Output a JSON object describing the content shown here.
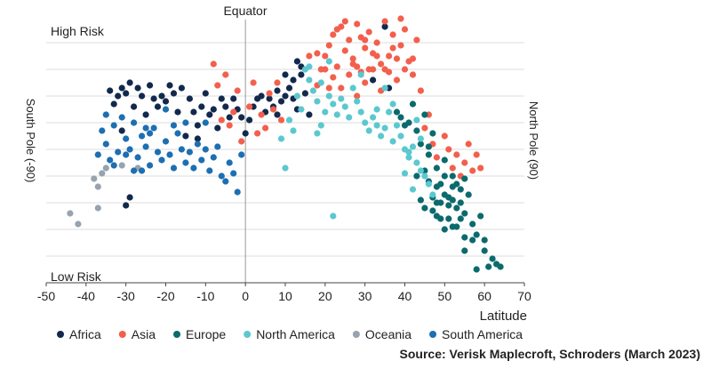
{
  "chart_data": {
    "type": "scatter",
    "xlabel": "Latitude",
    "ylabel": "",
    "xlim": [
      -50,
      70
    ],
    "x_ticks": [
      -50,
      -40,
      -30,
      -20,
      -10,
      0,
      10,
      20,
      30,
      40,
      50,
      60,
      70
    ],
    "ylim": [
      0,
      10
    ],
    "grid": "horizontal",
    "annotations": {
      "top_center": "Equator",
      "top_left": "High Risk",
      "bottom_left": "Low Risk",
      "left_side": "South Pole (-90)",
      "right_side": "North Pole (90)"
    },
    "legend_position": "bottom",
    "source": "Source: Verisk Maplecroft, Schroders (March 2023)",
    "series": [
      {
        "name": "Africa",
        "color": "#12294d",
        "points": [
          [
            -34,
            7.2
          ],
          [
            -33,
            6.7
          ],
          [
            -32,
            7.0
          ],
          [
            -31,
            7.3
          ],
          [
            -30,
            7.1
          ],
          [
            -29,
            7.5
          ],
          [
            -28,
            6.6
          ],
          [
            -27,
            7.3
          ],
          [
            -26,
            7.0
          ],
          [
            -25,
            6.3
          ],
          [
            -24,
            7.4
          ],
          [
            -23,
            6.9
          ],
          [
            -22,
            6.6
          ],
          [
            -21,
            7.0
          ],
          [
            -20,
            6.8
          ],
          [
            -19,
            7.4
          ],
          [
            -18,
            7.1
          ],
          [
            -17,
            6.4
          ],
          [
            -16,
            7.3
          ],
          [
            -15,
            5.5
          ],
          [
            -14,
            6.9
          ],
          [
            -13,
            6.4
          ],
          [
            -12,
            5.4
          ],
          [
            -11,
            6.6
          ],
          [
            -10,
            7.1
          ],
          [
            -9,
            6.3
          ],
          [
            -8,
            6.5
          ],
          [
            -7,
            5.8
          ],
          [
            -6,
            6.9
          ],
          [
            -5,
            6.6
          ],
          [
            -4,
            6.2
          ],
          [
            -3,
            6.9
          ],
          [
            -2,
            6.5
          ],
          [
            -1,
            6.2
          ],
          [
            0,
            5.6
          ],
          [
            1,
            6.1
          ],
          [
            2,
            6.6
          ],
          [
            3,
            6.9
          ],
          [
            4,
            7.0
          ],
          [
            5,
            6.4
          ],
          [
            6,
            6.9
          ],
          [
            7,
            6.6
          ],
          [
            8,
            7.2
          ],
          [
            9,
            6.8
          ],
          [
            10,
            7.0
          ],
          [
            11,
            7.3
          ],
          [
            12,
            6.9
          ],
          [
            13,
            6.5
          ],
          [
            14,
            7.8
          ],
          [
            15,
            7.1
          ],
          [
            16,
            6.3
          ],
          [
            13,
            8.3
          ],
          [
            14,
            8.1
          ],
          [
            32,
            7.6
          ],
          [
            36,
            7.3
          ],
          [
            35,
            9.6
          ],
          [
            -30,
            2.9
          ],
          [
            -29,
            3.2
          ],
          [
            -31,
            5.7
          ],
          [
            -12,
            5.9
          ],
          [
            12,
            7.6
          ],
          [
            10,
            7.8
          ],
          [
            8,
            6.3
          ]
        ]
      },
      {
        "name": "Asia",
        "color": "#f2604d",
        "points": [
          [
            -8,
            8.2
          ],
          [
            -7,
            7.4
          ],
          [
            -6,
            6.1
          ],
          [
            -5,
            7.8
          ],
          [
            -4,
            5.9
          ],
          [
            -3,
            6.4
          ],
          [
            -2,
            7.2
          ],
          [
            -1,
            5.3
          ],
          [
            1,
            6.6
          ],
          [
            2,
            7.5
          ],
          [
            3,
            5.6
          ],
          [
            4,
            6.3
          ],
          [
            5,
            5.8
          ],
          [
            6,
            7.1
          ],
          [
            7,
            6.5
          ],
          [
            8,
            7.5
          ],
          [
            9,
            6.1
          ],
          [
            20,
            8.5
          ],
          [
            21,
            8.9
          ],
          [
            22,
            9.3
          ],
          [
            23,
            8.1
          ],
          [
            24,
            9.6
          ],
          [
            25,
            8.7
          ],
          [
            26,
            9.1
          ],
          [
            27,
            8.4
          ],
          [
            28,
            9.7
          ],
          [
            29,
            7.9
          ],
          [
            30,
            8.8
          ],
          [
            31,
            9.4
          ],
          [
            32,
            8.6
          ],
          [
            33,
            9.0
          ],
          [
            34,
            8.2
          ],
          [
            35,
            9.8
          ],
          [
            36,
            8.5
          ],
          [
            37,
            9.3
          ],
          [
            38,
            7.6
          ],
          [
            39,
            8.9
          ],
          [
            40,
            9.5
          ],
          [
            41,
            8.3
          ],
          [
            42,
            7.8
          ],
          [
            43,
            9.1
          ],
          [
            22,
            7.7
          ],
          [
            24,
            7.3
          ],
          [
            26,
            7.8
          ],
          [
            28,
            7.0
          ],
          [
            30,
            7.5
          ],
          [
            32,
            8.0
          ],
          [
            34,
            7.2
          ],
          [
            36,
            7.9
          ],
          [
            38,
            8.4
          ],
          [
            40,
            8.0
          ],
          [
            25,
            9.8
          ],
          [
            27,
            8.2
          ],
          [
            29,
            9.2
          ],
          [
            31,
            8.0
          ],
          [
            33,
            8.5
          ],
          [
            37,
            8.8
          ],
          [
            39,
            9.9
          ],
          [
            19,
            8.0
          ],
          [
            18,
            8.6
          ],
          [
            21,
            7.3
          ],
          [
            23,
            9.5
          ],
          [
            35,
            8.0
          ],
          [
            42,
            8.4
          ],
          [
            46,
            6.3
          ],
          [
            47,
            5.2
          ],
          [
            48,
            4.7
          ],
          [
            50,
            5.5
          ],
          [
            51,
            5.0
          ],
          [
            52,
            4.3
          ],
          [
            53,
            4.8
          ],
          [
            54,
            4.0
          ],
          [
            55,
            4.5
          ],
          [
            56,
            5.2
          ],
          [
            57,
            4.2
          ],
          [
            58,
            4.8
          ],
          [
            59,
            4.3
          ],
          [
            16,
            8.5
          ],
          [
            18,
            7.4
          ],
          [
            44,
            7.2
          ],
          [
            45,
            5.8
          ],
          [
            20,
            8.0
          ],
          [
            28,
            8.1
          ],
          [
            30,
            9.1
          ]
        ]
      },
      {
        "name": "Europe",
        "color": "#0b6a6d",
        "points": [
          [
            38,
            6.4
          ],
          [
            40,
            5.9
          ],
          [
            42,
            6.7
          ],
          [
            44,
            5.2
          ],
          [
            45,
            6.3
          ],
          [
            46,
            4.8
          ],
          [
            47,
            5.6
          ],
          [
            48,
            4.3
          ],
          [
            49,
            3.7
          ],
          [
            50,
            4.6
          ],
          [
            51,
            3.2
          ],
          [
            52,
            4.0
          ],
          [
            53,
            2.8
          ],
          [
            54,
            3.5
          ],
          [
            55,
            2.6
          ],
          [
            56,
            3.3
          ],
          [
            57,
            2.2
          ],
          [
            58,
            1.8
          ],
          [
            59,
            2.5
          ],
          [
            60,
            1.6
          ],
          [
            61,
            0.6
          ],
          [
            62,
            0.9
          ],
          [
            63,
            0.7
          ],
          [
            64,
            0.6
          ],
          [
            47,
            2.7
          ],
          [
            48,
            3.0
          ],
          [
            49,
            2.4
          ],
          [
            50,
            3.3
          ],
          [
            51,
            2.9
          ],
          [
            52,
            2.1
          ],
          [
            53,
            3.7
          ],
          [
            54,
            2.4
          ],
          [
            55,
            3.9
          ],
          [
            50,
            2.0
          ],
          [
            51,
            2.4
          ],
          [
            52,
            3.1
          ],
          [
            49,
            3.0
          ],
          [
            48,
            3.6
          ],
          [
            47,
            3.2
          ],
          [
            46,
            3.8
          ],
          [
            45,
            2.8
          ],
          [
            44,
            3.1
          ],
          [
            43,
            4.0
          ],
          [
            45,
            4.2
          ],
          [
            48,
            2.5
          ],
          [
            53,
            2.1
          ],
          [
            55,
            1.7
          ],
          [
            57,
            1.6
          ],
          [
            60,
            1.2
          ],
          [
            58,
            0.5
          ],
          [
            55,
            1.2
          ],
          [
            52,
            3.6
          ],
          [
            54,
            3.0
          ],
          [
            50,
            4.0
          ],
          [
            46,
            5.1
          ],
          [
            43,
            5.7
          ],
          [
            39,
            6.2
          ],
          [
            41,
            6.0
          ]
        ]
      },
      {
        "name": "North America",
        "color": "#5bc8cf",
        "points": [
          [
            15,
            8.0
          ],
          [
            16,
            7.6
          ],
          [
            17,
            7.2
          ],
          [
            18,
            6.8
          ],
          [
            19,
            7.5
          ],
          [
            20,
            6.4
          ],
          [
            21,
            7.0
          ],
          [
            22,
            6.7
          ],
          [
            23,
            6.3
          ],
          [
            24,
            6.9
          ],
          [
            25,
            6.6
          ],
          [
            26,
            6.2
          ],
          [
            27,
            7.3
          ],
          [
            28,
            6.8
          ],
          [
            29,
            6.4
          ],
          [
            30,
            6.0
          ],
          [
            31,
            5.7
          ],
          [
            32,
            6.2
          ],
          [
            33,
            5.9
          ],
          [
            34,
            5.5
          ],
          [
            35,
            5.8
          ],
          [
            36,
            6.4
          ],
          [
            37,
            5.3
          ],
          [
            38,
            5.9
          ],
          [
            39,
            5.5
          ],
          [
            40,
            5.0
          ],
          [
            41,
            4.7
          ],
          [
            42,
            5.1
          ],
          [
            43,
            4.5
          ],
          [
            44,
            4.2
          ],
          [
            45,
            4.0
          ],
          [
            46,
            3.7
          ],
          [
            47,
            3.3
          ],
          [
            9,
            5.4
          ],
          [
            10,
            4.3
          ],
          [
            11,
            6.1
          ],
          [
            12,
            5.7
          ],
          [
            14,
            6.5
          ],
          [
            16,
            8.1
          ],
          [
            18,
            5.6
          ],
          [
            19,
            5.9
          ],
          [
            22,
            2.5
          ],
          [
            29,
            7.8
          ],
          [
            33,
            6.5
          ],
          [
            35,
            7.3
          ],
          [
            37,
            6.7
          ],
          [
            40,
            4.1
          ],
          [
            41,
            4.9
          ],
          [
            42,
            3.5
          ],
          [
            43,
            6.1
          ],
          [
            44,
            5.4
          ],
          [
            13,
            7.0
          ],
          [
            21,
            8.3
          ]
        ]
      },
      {
        "name": "Oceania",
        "color": "#97a3ae",
        "points": [
          [
            -44,
            2.6
          ],
          [
            -42,
            2.2
          ],
          [
            -38,
            3.9
          ],
          [
            -37,
            3.6
          ],
          [
            -36,
            4.1
          ],
          [
            -35,
            4.3
          ],
          [
            -31,
            4.4
          ],
          [
            -27,
            4.3
          ],
          [
            -37,
            2.8
          ]
        ]
      },
      {
        "name": "South America",
        "color": "#1c6fb2",
        "points": [
          [
            -37,
            4.8
          ],
          [
            -36,
            5.7
          ],
          [
            -35,
            5.2
          ],
          [
            -34,
            4.6
          ],
          [
            -33,
            4.4
          ],
          [
            -32,
            4.9
          ],
          [
            -31,
            6.2
          ],
          [
            -30,
            5.4
          ],
          [
            -29,
            5.0
          ],
          [
            -28,
            4.2
          ],
          [
            -27,
            4.7
          ],
          [
            -26,
            5.5
          ],
          [
            -25,
            5.1
          ],
          [
            -24,
            4.4
          ],
          [
            -23,
            5.8
          ],
          [
            -22,
            4.9
          ],
          [
            -21,
            4.6
          ],
          [
            -20,
            5.3
          ],
          [
            -19,
            4.8
          ],
          [
            -18,
            4.3
          ],
          [
            -17,
            5.6
          ],
          [
            -16,
            5.0
          ],
          [
            -15,
            4.5
          ],
          [
            -14,
            4.9
          ],
          [
            -13,
            4.3
          ],
          [
            -12,
            5.2
          ],
          [
            -11,
            4.6
          ],
          [
            -10,
            5.0
          ],
          [
            -9,
            4.2
          ],
          [
            -8,
            4.7
          ],
          [
            -7,
            5.1
          ],
          [
            -6,
            4.0
          ],
          [
            -5,
            3.8
          ],
          [
            -4,
            4.5
          ],
          [
            -3,
            4.1
          ],
          [
            -2,
            3.4
          ],
          [
            -1,
            4.8
          ],
          [
            -35,
            6.3
          ],
          [
            -33,
            5.9
          ],
          [
            -28,
            6.0
          ],
          [
            -25,
            5.8
          ],
          [
            -20,
            6.5
          ],
          [
            -18,
            5.9
          ],
          [
            -15,
            6.0
          ],
          [
            -10,
            6.0
          ],
          [
            -24,
            5.6
          ],
          [
            -26,
            4.2
          ],
          [
            -30,
            4.8
          ]
        ]
      }
    ]
  }
}
